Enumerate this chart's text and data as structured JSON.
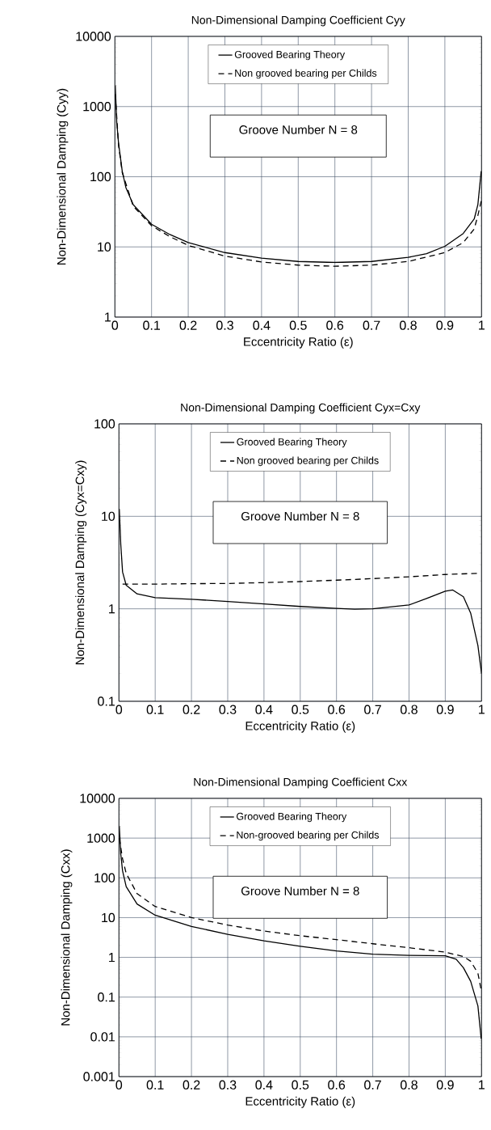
{
  "chart_data": [
    {
      "type": "line",
      "title": "Non-Dimensional Damping Coefficient Cyy",
      "xlabel": "Eccentricity Ratio (ε)",
      "ylabel": "Non-Dimensional Damping (Cyy)",
      "annotations": [
        "Groove Number N = 8"
      ],
      "xlim": [
        0,
        1
      ],
      "xticks": [
        0,
        0.1,
        0.2,
        0.3,
        0.4,
        0.5,
        0.6,
        0.7,
        0.8,
        0.9,
        1
      ],
      "ylim": [
        1,
        10000
      ],
      "yticks": [
        1,
        10,
        100,
        1000,
        10000
      ],
      "log": true,
      "grid": true,
      "legend": "top",
      "series": [
        {
          "name": "Grooved Bearing Theory",
          "color": "#000000",
          "line_style": "solid",
          "x": [
            0.001,
            0.005,
            0.01,
            0.02,
            0.03,
            0.05,
            0.1,
            0.15,
            0.2,
            0.3,
            0.4,
            0.5,
            0.6,
            0.7,
            0.8,
            0.85,
            0.9,
            0.95,
            0.98,
            0.99,
            0.999
          ],
          "values": [
            2000,
            600,
            300,
            120,
            70,
            40,
            21,
            15,
            11.5,
            8.3,
            6.9,
            6.2,
            6.0,
            6.2,
            7.1,
            8,
            10.2,
            15.5,
            25,
            40,
            120
          ]
        },
        {
          "name": "Non grooved bearing per Childs",
          "color": "#000000",
          "line_style": "dashed",
          "x": [
            0.001,
            0.01,
            0.02,
            0.05,
            0.1,
            0.15,
            0.2,
            0.3,
            0.4,
            0.5,
            0.6,
            0.7,
            0.8,
            0.9,
            0.95,
            0.98,
            0.99,
            0.999
          ],
          "values": [
            1500,
            280,
            115,
            38,
            20,
            14,
            10.5,
            7.4,
            6.1,
            5.5,
            5.3,
            5.5,
            6.2,
            8.3,
            11.5,
            18,
            28,
            45
          ]
        }
      ]
    },
    {
      "type": "line",
      "title": "Non-Dimensional Damping Coefficient Cyx=Cxy",
      "xlabel": "Eccentricity Ratio (ε)",
      "ylabel": "Non-Dimensional Damping (Cyx=Cxy)",
      "annotations": [
        "Groove Number N = 8"
      ],
      "xlim": [
        0,
        1
      ],
      "xticks": [
        0,
        0.1,
        0.2,
        0.3,
        0.4,
        0.5,
        0.6,
        0.7,
        0.8,
        0.9,
        1
      ],
      "ylim": [
        0.1,
        100
      ],
      "yticks": [
        0.1,
        1,
        10,
        100
      ],
      "log": true,
      "grid": true,
      "legend": "top",
      "series": [
        {
          "name": "Grooved Bearing Theory",
          "color": "#000000",
          "line_style": "solid",
          "x": [
            0.001,
            0.005,
            0.01,
            0.02,
            0.05,
            0.1,
            0.2,
            0.3,
            0.4,
            0.5,
            0.6,
            0.65,
            0.7,
            0.8,
            0.85,
            0.9,
            0.92,
            0.95,
            0.97,
            0.99,
            1.0
          ],
          "values": [
            12,
            5,
            2.5,
            1.8,
            1.45,
            1.32,
            1.27,
            1.2,
            1.13,
            1.06,
            1.01,
            0.99,
            1.0,
            1.1,
            1.3,
            1.55,
            1.6,
            1.35,
            0.9,
            0.4,
            0.2
          ]
        },
        {
          "name": "Non grooved bearing per Childs",
          "color": "#000000",
          "line_style": "dashed",
          "x": [
            0.01,
            0.1,
            0.2,
            0.3,
            0.4,
            0.5,
            0.6,
            0.7,
            0.8,
            0.9,
            0.99
          ],
          "values": [
            1.85,
            1.85,
            1.87,
            1.88,
            1.92,
            1.97,
            2.04,
            2.12,
            2.22,
            2.35,
            2.42
          ]
        }
      ]
    },
    {
      "type": "line",
      "title": "Non-Dimensional Damping Coefficient Cxx",
      "xlabel": "Eccentricity Ratio (ε)",
      "ylabel": "Non-Dimensional Damping (Cxx)",
      "annotations": [
        "Groove Number N = 8"
      ],
      "xlim": [
        0,
        1
      ],
      "xticks": [
        0,
        0.1,
        0.2,
        0.3,
        0.4,
        0.5,
        0.6,
        0.7,
        0.8,
        0.9,
        1
      ],
      "ylim": [
        0.001,
        10000
      ],
      "yticks": [
        0.001,
        0.01,
        0.1,
        1,
        10,
        100,
        1000,
        10000
      ],
      "log": true,
      "grid": true,
      "legend": "top",
      "series": [
        {
          "name": "Grooved Bearing Theory",
          "color": "#000000",
          "line_style": "solid",
          "x": [
            0.001,
            0.005,
            0.01,
            0.02,
            0.05,
            0.1,
            0.2,
            0.3,
            0.4,
            0.5,
            0.6,
            0.7,
            0.8,
            0.9,
            0.93,
            0.95,
            0.97,
            0.99,
            0.999
          ],
          "values": [
            2000,
            400,
            150,
            60,
            22,
            11.5,
            6,
            3.8,
            2.6,
            1.9,
            1.45,
            1.2,
            1.12,
            1.1,
            0.9,
            0.55,
            0.25,
            0.06,
            0.009
          ]
        },
        {
          "name": "Non-grooved bearing per Childs",
          "color": "#000000",
          "line_style": "dashed",
          "x": [
            0.001,
            0.01,
            0.02,
            0.05,
            0.1,
            0.2,
            0.3,
            0.4,
            0.5,
            0.6,
            0.7,
            0.8,
            0.9,
            0.95,
            0.97,
            0.99,
            0.999
          ],
          "values": [
            1000,
            300,
            130,
            40,
            19,
            10,
            6.5,
            4.6,
            3.5,
            2.8,
            2.2,
            1.75,
            1.35,
            1.05,
            0.8,
            0.4,
            0.15
          ]
        }
      ]
    }
  ]
}
